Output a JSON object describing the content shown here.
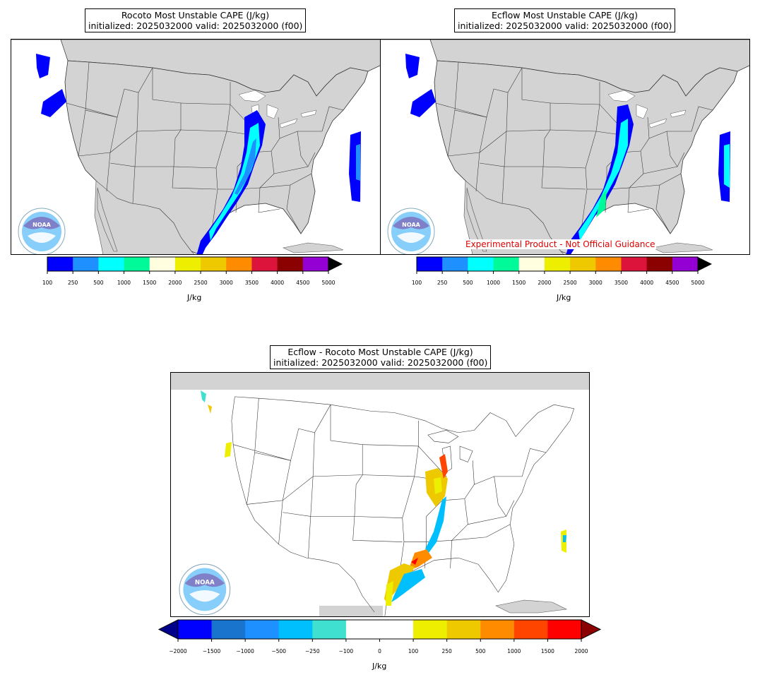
{
  "panels": {
    "rocoto": {
      "title_line1": "Rocoto Most Unstable CAPE (J/kg)",
      "title_line2": "initialized: 2025032000 valid: 2025032000 (f00)",
      "colorbar": {
        "ticks": [
          "100",
          "250",
          "500",
          "1000",
          "1500",
          "2000",
          "2500",
          "3000",
          "3500",
          "4000",
          "4500",
          "5000"
        ],
        "colors": [
          "#0000ff",
          "#1e90ff",
          "#00ffff",
          "#00fa9a",
          "#ffffe0",
          "#eeee00",
          "#eec900",
          "#ff8c00",
          "#dc143c",
          "#8b0000",
          "#9400d3"
        ],
        "unit": "J/kg"
      }
    },
    "ecflow": {
      "title_line1": "Ecflow Most Unstable CAPE (J/kg)",
      "title_line2": "initialized: 2025032000 valid: 2025032000 (f00)",
      "disclaimer": "Experimental Product - Not Official Guidance",
      "colorbar": {
        "ticks": [
          "100",
          "250",
          "500",
          "1000",
          "1500",
          "2000",
          "2500",
          "3000",
          "3500",
          "4000",
          "4500",
          "5000"
        ],
        "colors": [
          "#0000ff",
          "#1e90ff",
          "#00ffff",
          "#00fa9a",
          "#ffffe0",
          "#eeee00",
          "#eec900",
          "#ff8c00",
          "#dc143c",
          "#8b0000",
          "#9400d3"
        ],
        "unit": "J/kg"
      }
    },
    "difference": {
      "title_line1": "Ecflow - Rocoto Most Unstable CAPE (J/kg)",
      "title_line2": "initialized: 2025032000 valid: 2025032000 (f00)",
      "colorbar": {
        "ticks": [
          "−2000",
          "−1500",
          "−1000",
          "−500",
          "−250",
          "−100",
          "0",
          "100",
          "250",
          "500",
          "1000",
          "1500",
          "2000"
        ],
        "colors": [
          "#0000ff",
          "#1874cd",
          "#1e90ff",
          "#00bfff",
          "#40e0d0",
          "#ffffff",
          "#ffffff",
          "#eeee00",
          "#eec900",
          "#ff8c00",
          "#ff4500",
          "#ff0000"
        ],
        "under_color": "#00008b",
        "over_color": "#8b0000",
        "unit": "J/kg"
      }
    }
  },
  "logo": {
    "text": "NOAA",
    "icon": "noaa-logo"
  },
  "colors": {
    "land": "#d3d3d3",
    "border": "#000000"
  }
}
